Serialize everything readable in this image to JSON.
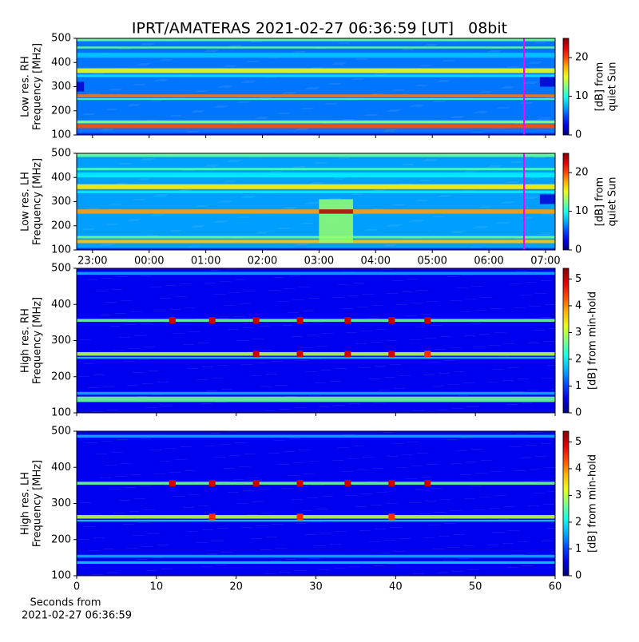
{
  "title": "IPRT/AMATERAS 2021-02-27 06:36:59 [UT]   08bit",
  "chart_data": [
    {
      "type": "heatmap",
      "ylabel": [
        "Low res. RH",
        "Frequency [MHz]"
      ],
      "colorbar_label": [
        "[dB] from",
        "quiet Sun"
      ],
      "xlim": [
        22.72,
        31.17
      ],
      "ylim": [
        100,
        500
      ],
      "yticks": [
        100,
        200,
        300,
        400,
        500
      ],
      "clim": [
        0,
        25
      ],
      "cticks": [
        0,
        10,
        20
      ],
      "background_db": 6,
      "bands": [
        {
          "freq": [
            488,
            500
          ],
          "db": 12
        },
        {
          "freq": [
            458,
            466
          ],
          "db": 12
        },
        {
          "freq": [
            420,
            440
          ],
          "db": 8
        },
        {
          "freq": [
            356,
            376
          ],
          "db": 15
        },
        {
          "freq": [
            340,
            350
          ],
          "db": 9
        },
        {
          "freq": [
            255,
            268
          ],
          "db": 19
        },
        {
          "freq": [
            245,
            252
          ],
          "db": 11
        },
        {
          "freq": [
            148,
            160
          ],
          "db": 13
        },
        {
          "freq": [
            128,
            145
          ],
          "db": 20
        },
        {
          "freq": [
            100,
            108
          ],
          "db": 4
        }
      ],
      "regions": [
        {
          "x": [
            30.9,
            31.17
          ],
          "freq": [
            300,
            340
          ],
          "db": 2
        },
        {
          "x": [
            22.72,
            22.85
          ],
          "freq": [
            280,
            320
          ],
          "db": 2
        }
      ],
      "marker_line": {
        "x": 30.62,
        "color": "#ff00ff"
      }
    },
    {
      "type": "heatmap",
      "ylabel": [
        "Low res. LH",
        "Frequency [MHz]"
      ],
      "colorbar_label": [
        "[dB] from",
        "quiet Sun"
      ],
      "xlim": [
        22.72,
        31.17
      ],
      "ylim": [
        100,
        500
      ],
      "yticks": [
        100,
        200,
        300,
        400,
        500
      ],
      "xticks": [
        {
          "value": 23,
          "label": "23:00"
        },
        {
          "value": 24,
          "label": "00:00"
        },
        {
          "value": 25,
          "label": "01:00"
        },
        {
          "value": 26,
          "label": "02:00"
        },
        {
          "value": 27,
          "label": "03:00"
        },
        {
          "value": 28,
          "label": "04:00"
        },
        {
          "value": 29,
          "label": "05:00"
        },
        {
          "value": 30,
          "label": "06:00"
        },
        {
          "value": 31,
          "label": "07:00"
        }
      ],
      "clim": [
        0,
        25
      ],
      "cticks": [
        0,
        10,
        20
      ],
      "background_db": 7,
      "bands": [
        {
          "freq": [
            485,
            500
          ],
          "db": 12
        },
        {
          "freq": [
            430,
            440
          ],
          "db": 11
        },
        {
          "freq": [
            400,
            420
          ],
          "db": 9
        },
        {
          "freq": [
            352,
            372
          ],
          "db": 16
        },
        {
          "freq": [
            335,
            345
          ],
          "db": 9
        },
        {
          "freq": [
            250,
            268
          ],
          "db": 18
        },
        {
          "freq": [
            148,
            158
          ],
          "db": 12
        },
        {
          "freq": [
            128,
            142
          ],
          "db": 17
        },
        {
          "freq": [
            100,
            108
          ],
          "db": 4
        }
      ],
      "regions": [
        {
          "x": [
            27,
            27.6
          ],
          "freq": [
            130,
            310
          ],
          "db": 13
        },
        {
          "x": [
            27,
            27.6
          ],
          "freq": [
            250,
            268
          ],
          "db": 24
        },
        {
          "x": [
            30.9,
            31.17
          ],
          "freq": [
            290,
            330
          ],
          "db": 2
        }
      ],
      "marker_line": {
        "x": 30.62,
        "color": "#ff00ff"
      }
    },
    {
      "type": "heatmap",
      "ylabel": [
        "High res. RH",
        "Frequency [MHz]"
      ],
      "colorbar_label": [
        "[dB] from min-hold"
      ],
      "xlim": [
        0,
        60
      ],
      "ylim": [
        100,
        500
      ],
      "yticks": [
        100,
        200,
        300,
        400,
        500
      ],
      "clim": [
        0,
        5.4
      ],
      "cticks": [
        0,
        1,
        2,
        3,
        4,
        5
      ],
      "background_db": 0.6,
      "bands": [
        {
          "freq": [
            482,
            490
          ],
          "db": 1.6
        },
        {
          "freq": [
            352,
            360
          ],
          "db": 2.6
        },
        {
          "freq": [
            258,
            268
          ],
          "db": 3
        },
        {
          "freq": [
            250,
            255
          ],
          "db": 1.8
        },
        {
          "freq": [
            150,
            158
          ],
          "db": 1.6
        },
        {
          "freq": [
            130,
            145
          ],
          "db": 2.6
        }
      ],
      "spots": [
        {
          "x": 12,
          "freq": 356,
          "db": 5
        },
        {
          "x": 17,
          "freq": 356,
          "db": 5
        },
        {
          "x": 22.5,
          "freq": 356,
          "db": 5
        },
        {
          "x": 28,
          "freq": 356,
          "db": 5
        },
        {
          "x": 34,
          "freq": 356,
          "db": 5
        },
        {
          "x": 39.5,
          "freq": 356,
          "db": 5
        },
        {
          "x": 44,
          "freq": 356,
          "db": 5
        },
        {
          "x": 22.5,
          "freq": 263,
          "db": 5
        },
        {
          "x": 28,
          "freq": 263,
          "db": 5
        },
        {
          "x": 34,
          "freq": 263,
          "db": 5
        },
        {
          "x": 39.5,
          "freq": 263,
          "db": 5
        },
        {
          "x": 44,
          "freq": 263,
          "db": 4.5
        }
      ]
    },
    {
      "type": "heatmap",
      "ylabel": [
        "High res. LH",
        "Frequency [MHz]"
      ],
      "colorbar_label": [
        "[dB] from min-hold"
      ],
      "xlim": [
        0,
        60
      ],
      "ylim": [
        100,
        500
      ],
      "yticks": [
        100,
        200,
        300,
        400,
        500
      ],
      "xticks": [
        0,
        10,
        20,
        30,
        40,
        50,
        60
      ],
      "xlabel": [
        "Seconds from",
        "2021-02-27 06:36:59"
      ],
      "clim": [
        0,
        5.4
      ],
      "cticks": [
        0,
        1,
        2,
        3,
        4,
        5
      ],
      "background_db": 0.6,
      "bands": [
        {
          "freq": [
            482,
            490
          ],
          "db": 1.6
        },
        {
          "freq": [
            352,
            360
          ],
          "db": 2.6
        },
        {
          "freq": [
            258,
            268
          ],
          "db": 3
        },
        {
          "freq": [
            250,
            255
          ],
          "db": 1.8
        },
        {
          "freq": [
            150,
            158
          ],
          "db": 1.6
        },
        {
          "freq": [
            133,
            140
          ],
          "db": 1.8
        }
      ],
      "spots": [
        {
          "x": 12,
          "freq": 356,
          "db": 5
        },
        {
          "x": 17,
          "freq": 356,
          "db": 5
        },
        {
          "x": 22.5,
          "freq": 356,
          "db": 5
        },
        {
          "x": 28,
          "freq": 356,
          "db": 5
        },
        {
          "x": 34,
          "freq": 356,
          "db": 5
        },
        {
          "x": 39.5,
          "freq": 356,
          "db": 5
        },
        {
          "x": 44,
          "freq": 356,
          "db": 5
        },
        {
          "x": 17,
          "freq": 263,
          "db": 4.5
        },
        {
          "x": 28,
          "freq": 263,
          "db": 4.5
        },
        {
          "x": 39.5,
          "freq": 263,
          "db": 4.5
        }
      ]
    }
  ]
}
